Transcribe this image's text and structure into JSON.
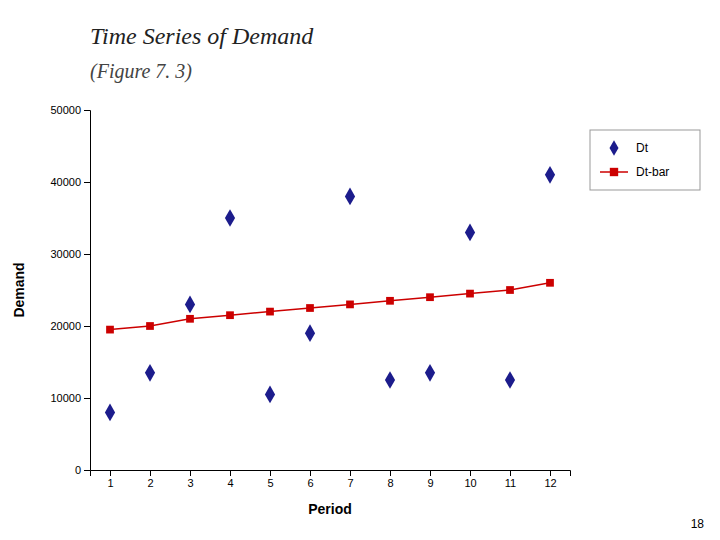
{
  "chart_data": {
    "type": "line",
    "title": "Time Series of Demand",
    "subtitle": "(Figure 7. 3)",
    "annotations": [
      "18"
    ],
    "xlabel": "Period",
    "ylabel": "Demand",
    "x": [
      1,
      2,
      3,
      4,
      5,
      6,
      7,
      8,
      9,
      10,
      11,
      12
    ],
    "series": [
      {
        "name": "Dt",
        "type": "scatter",
        "marker": "diamond",
        "color": "#1C1C8C",
        "values": [
          8000,
          13500,
          23000,
          35000,
          10500,
          19000,
          38000,
          12500,
          13500,
          33000,
          12500,
          41000
        ]
      },
      {
        "name": "Dt-bar",
        "type": "line",
        "marker": "square",
        "color": "#CC0000",
        "values": [
          19500,
          20000,
          21000,
          21500,
          22000,
          22500,
          23000,
          23500,
          24000,
          24500,
          25000,
          26000
        ]
      }
    ],
    "xlim": [
      0.5,
      12.5
    ],
    "xticks": [
      1,
      2,
      3,
      4,
      5,
      6,
      7,
      8,
      9,
      10,
      11,
      12
    ],
    "ylim": [
      0,
      50000
    ],
    "yticks": [
      0,
      10000,
      20000,
      30000,
      40000,
      50000
    ],
    "grid": false,
    "legend": "right"
  }
}
